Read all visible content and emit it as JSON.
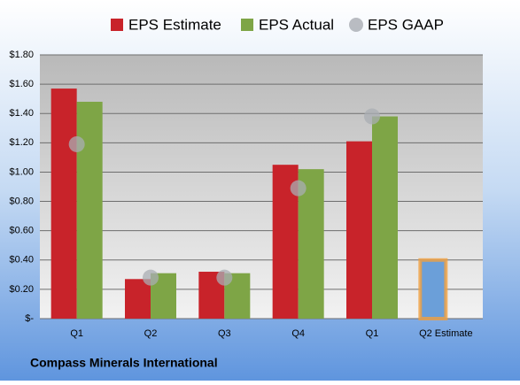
{
  "chart_data": {
    "type": "bar",
    "title": "Compass Minerals International",
    "categories": [
      "Q1",
      "Q2",
      "Q3",
      "Q4",
      "Q1",
      "Q2 Estimate"
    ],
    "series": [
      {
        "name": "EPS Estimate",
        "color": "#c8232a",
        "point_colors": [
          "#c8232a",
          "#c8232a",
          "#c8232a",
          "#c8232a",
          "#c8232a",
          "#6b9fd9"
        ],
        "values": [
          1.57,
          0.27,
          0.32,
          1.05,
          1.21,
          0.4
        ]
      },
      {
        "name": "EPS Actual",
        "color": "#7ea546",
        "values": [
          1.48,
          0.31,
          0.31,
          1.02,
          1.38,
          null
        ]
      },
      {
        "name": "EPS GAAP",
        "color": "#a9adb3",
        "marker": "circle",
        "values": [
          1.19,
          0.28,
          0.28,
          0.89,
          1.38,
          null
        ]
      }
    ],
    "ylim": [
      0,
      1.8
    ],
    "yticks": [
      {
        "value": 0,
        "label": "$-"
      },
      {
        "value": 0.2,
        "label": "$0.20"
      },
      {
        "value": 0.4,
        "label": "$0.40"
      },
      {
        "value": 0.6,
        "label": "$0.60"
      },
      {
        "value": 0.8,
        "label": "$0.80"
      },
      {
        "value": 1.0,
        "label": "$1.00"
      },
      {
        "value": 1.2,
        "label": "$1.20"
      },
      {
        "value": 1.4,
        "label": "$1.40"
      },
      {
        "value": 1.6,
        "label": "$1.60"
      },
      {
        "value": 1.8,
        "label": "$1.80"
      }
    ],
    "grid": true,
    "legend": "top",
    "highlight_color": "#f0a040"
  }
}
